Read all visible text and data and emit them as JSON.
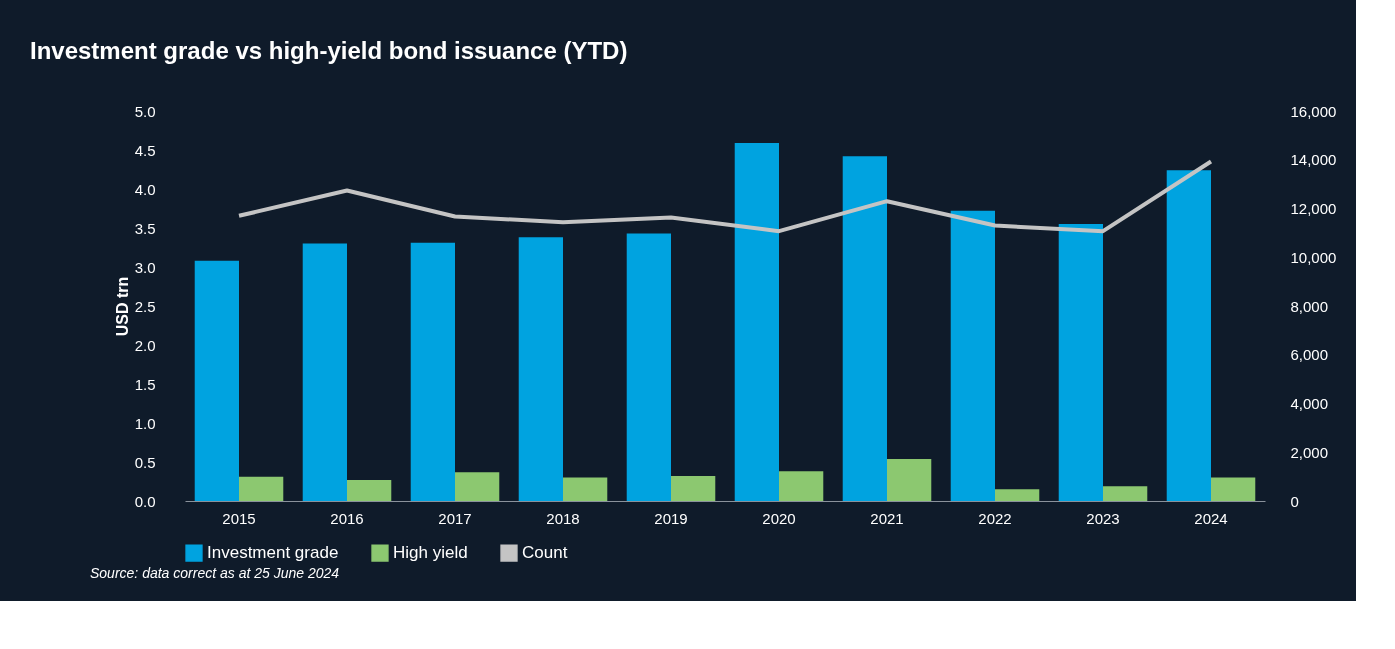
{
  "chart_data": {
    "type": "bar",
    "title": "Investment grade vs high-yield bond issuance (YTD)",
    "categories": [
      "2015",
      "2016",
      "2017",
      "2018",
      "2019",
      "2020",
      "2021",
      "2022",
      "2023",
      "2024"
    ],
    "series": [
      {
        "name": "Investment grade",
        "color": "#00a3e0",
        "values": [
          3.08,
          3.3,
          3.31,
          3.38,
          3.43,
          4.59,
          4.42,
          3.72,
          3.55,
          4.24
        ]
      },
      {
        "name": "High yield",
        "color": "#8cc870",
        "values": [
          0.31,
          0.27,
          0.37,
          0.3,
          0.32,
          0.38,
          0.54,
          0.15,
          0.19,
          0.3
        ]
      },
      {
        "name": "Count",
        "type": "line",
        "axis": "y2",
        "color": "#c4c4c4",
        "values": [
          11700,
          12740,
          11670,
          11440,
          11630,
          11070,
          12300,
          11300,
          11070,
          13930
        ]
      }
    ],
    "ylabel": "USD trn",
    "ylim": [
      0,
      5
    ],
    "yticks": [
      {
        "value": 0,
        "label": "0.0"
      },
      {
        "value": 0.5,
        "label": "0.5"
      },
      {
        "value": 1,
        "label": "1.0"
      },
      {
        "value": 1.5,
        "label": "1.5"
      },
      {
        "value": 2,
        "label": "2.0"
      },
      {
        "value": 2.5,
        "label": "2.5"
      },
      {
        "value": 3,
        "label": "3.0"
      },
      {
        "value": 3.5,
        "label": "3.5"
      },
      {
        "value": 4,
        "label": "4.0"
      },
      {
        "value": 4.5,
        "label": "4.5"
      },
      {
        "value": 5,
        "label": "5.0"
      }
    ],
    "y2lim": [
      0,
      16000
    ],
    "y2ticks": [
      {
        "value": 0,
        "label": "0"
      },
      {
        "value": 2000,
        "label": "2,000"
      },
      {
        "value": 4000,
        "label": "4,000"
      },
      {
        "value": 6000,
        "label": "6,000"
      },
      {
        "value": 8000,
        "label": "8,000"
      },
      {
        "value": 10000,
        "label": "10,000"
      },
      {
        "value": 12000,
        "label": "12,000"
      },
      {
        "value": 14000,
        "label": "14,000"
      },
      {
        "value": 16000,
        "label": "16,000"
      }
    ],
    "legend": "bottom",
    "grid": false,
    "annotations": [
      "Source: data correct as at 25 June 2024"
    ]
  }
}
